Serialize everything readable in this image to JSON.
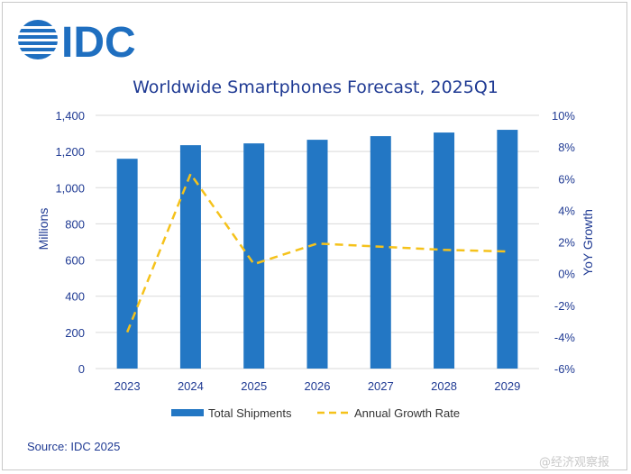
{
  "logo_text": "IDC",
  "source": "Source: IDC 2025",
  "watermark": "@经济观察报",
  "colors": {
    "bar": "#2377c4",
    "line": "#f5c21b",
    "text": "#1f3a93",
    "grid": "#d9d9d9"
  },
  "chart_data": {
    "type": "bar",
    "title": "Worldwide Smartphones Forecast, 2025Q1",
    "xlabel": "",
    "ylabel": "Millions",
    "y2label": "YoY Growth",
    "categories": [
      "2023",
      "2024",
      "2025",
      "2026",
      "2027",
      "2028",
      "2029"
    ],
    "ylim": [
      0,
      1400
    ],
    "y2lim": [
      -6,
      10
    ],
    "yticks": [
      "0",
      "200",
      "400",
      "600",
      "800",
      "1,000",
      "1,200",
      "1,400"
    ],
    "y2ticks": [
      "-6%",
      "-4%",
      "-2%",
      "0%",
      "2%",
      "4%",
      "6%",
      "8%",
      "10%"
    ],
    "grid": true,
    "legend_position": "bottom",
    "series": [
      {
        "name": "Total Shipments",
        "type": "bar",
        "axis": "left",
        "values": [
          1160,
          1235,
          1245,
          1265,
          1285,
          1305,
          1320
        ]
      },
      {
        "name": "Annual Growth Rate",
        "type": "line",
        "style": "dashed",
        "axis": "right",
        "values": [
          -3.7,
          6.3,
          0.6,
          1.9,
          1.7,
          1.5,
          1.4
        ]
      }
    ]
  }
}
